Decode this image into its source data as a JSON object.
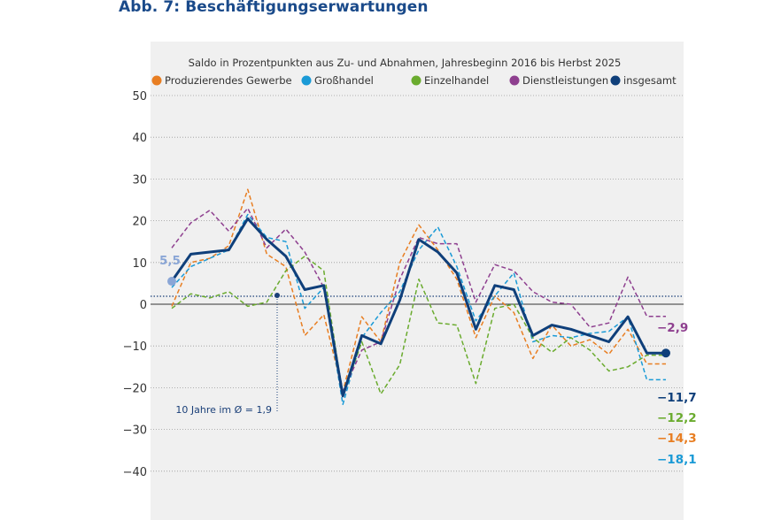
{
  "figure": {
    "title": "Abb. 7: Beschäftigungserwartungen"
  },
  "chart_data": {
    "type": "line",
    "title": "Abb. 7: Beschäftigungserwartungen",
    "subtitle": "Saldo in Prozentpunkten aus Zu- und Abnahmen, Jahresbeginn 2016 bis Herbst 2025",
    "xlabel": "",
    "ylabel": "",
    "ylim": [
      -45,
      50
    ],
    "yticks": [
      50,
      40,
      30,
      20,
      10,
      0,
      -10,
      -20,
      -30,
      -40
    ],
    "ytick_labels": [
      "50",
      "40",
      "30",
      "20",
      "10",
      "0",
      "-10",
      "-20",
      "-30",
      "-40"
    ],
    "grid": true,
    "legend_position": "top",
    "n_points": 27,
    "series": [
      {
        "name": "Produzierendes Gewerbe",
        "color": "#e87e22",
        "style": "dashed",
        "values": [
          -0.5,
          10,
          11,
          14,
          27.5,
          12,
          9,
          -7.5,
          -2.5,
          -21,
          -3,
          -9,
          10,
          19,
          13,
          6,
          -8,
          2,
          -2,
          -13,
          -5,
          -10,
          -8.5,
          -12,
          -6,
          -14.3,
          -14.3
        ]
      },
      {
        "name": "Großhandel",
        "color": "#1a9ad6",
        "style": "dashed",
        "values": [
          4,
          9,
          11,
          13,
          21.5,
          16,
          15,
          -1,
          4,
          -24,
          -8,
          -2,
          3,
          13,
          18.5,
          9,
          -4,
          2,
          7.5,
          -9,
          -7.5,
          -8,
          -7,
          -6.5,
          -3,
          -18.1,
          -18.1
        ]
      },
      {
        "name": "Einzelhandel",
        "color": "#6aab2e",
        "style": "dashed",
        "values": [
          -1,
          2.5,
          1.5,
          3,
          -0.5,
          0.5,
          8,
          11.5,
          8,
          -22,
          -9,
          -21.5,
          -14.5,
          6,
          -4.5,
          -5,
          -19,
          -1,
          0,
          -8,
          -11.5,
          -8,
          -11,
          -16,
          -15,
          -12.2,
          -12.2
        ]
      },
      {
        "name": "Dienstleistungen",
        "color": "#8e3f8f",
        "style": "dashed",
        "values": [
          13.5,
          19.5,
          22.5,
          17.5,
          23,
          13.5,
          18,
          12.5,
          4,
          -21,
          -11,
          -9,
          6,
          16,
          14.5,
          14.5,
          0.5,
          9.5,
          8,
          3,
          0.5,
          0,
          -5.5,
          -4.5,
          6.5,
          -2.9,
          -2.9
        ]
      },
      {
        "name": "insgesamt",
        "color": "#0f3f7a",
        "style": "solid",
        "values": [
          5.5,
          12,
          12.5,
          13,
          20.5,
          15.5,
          11.5,
          3.5,
          4.5,
          -22,
          -7.5,
          -9.5,
          1,
          15.5,
          12.5,
          7.5,
          -6,
          4.5,
          3.5,
          -7.5,
          -5,
          -6,
          -7.5,
          -9,
          -3,
          -11.7,
          -11.7
        ]
      }
    ],
    "start_annotation": {
      "label": "5,5",
      "value": 5.5,
      "color": "#8aa6d6"
    },
    "average_line": {
      "label": "10 Jahre im Ø = 1,9",
      "value": 1.9,
      "color": "#1a3f78"
    },
    "end_labels": [
      {
        "series": "Dienstleistungen",
        "label": "-2,9",
        "color": "#8e3f8f"
      },
      {
        "series": "insgesamt",
        "label": "-11,7",
        "color": "#0f3f7a"
      },
      {
        "series": "Einzelhandel",
        "label": "-12,2",
        "color": "#6aab2e"
      },
      {
        "series": "Produzierendes Gewerbe",
        "label": "-14,3",
        "color": "#e87e22"
      },
      {
        "series": "Großhandel",
        "label": "-18,1",
        "color": "#1a9ad6"
      }
    ]
  }
}
